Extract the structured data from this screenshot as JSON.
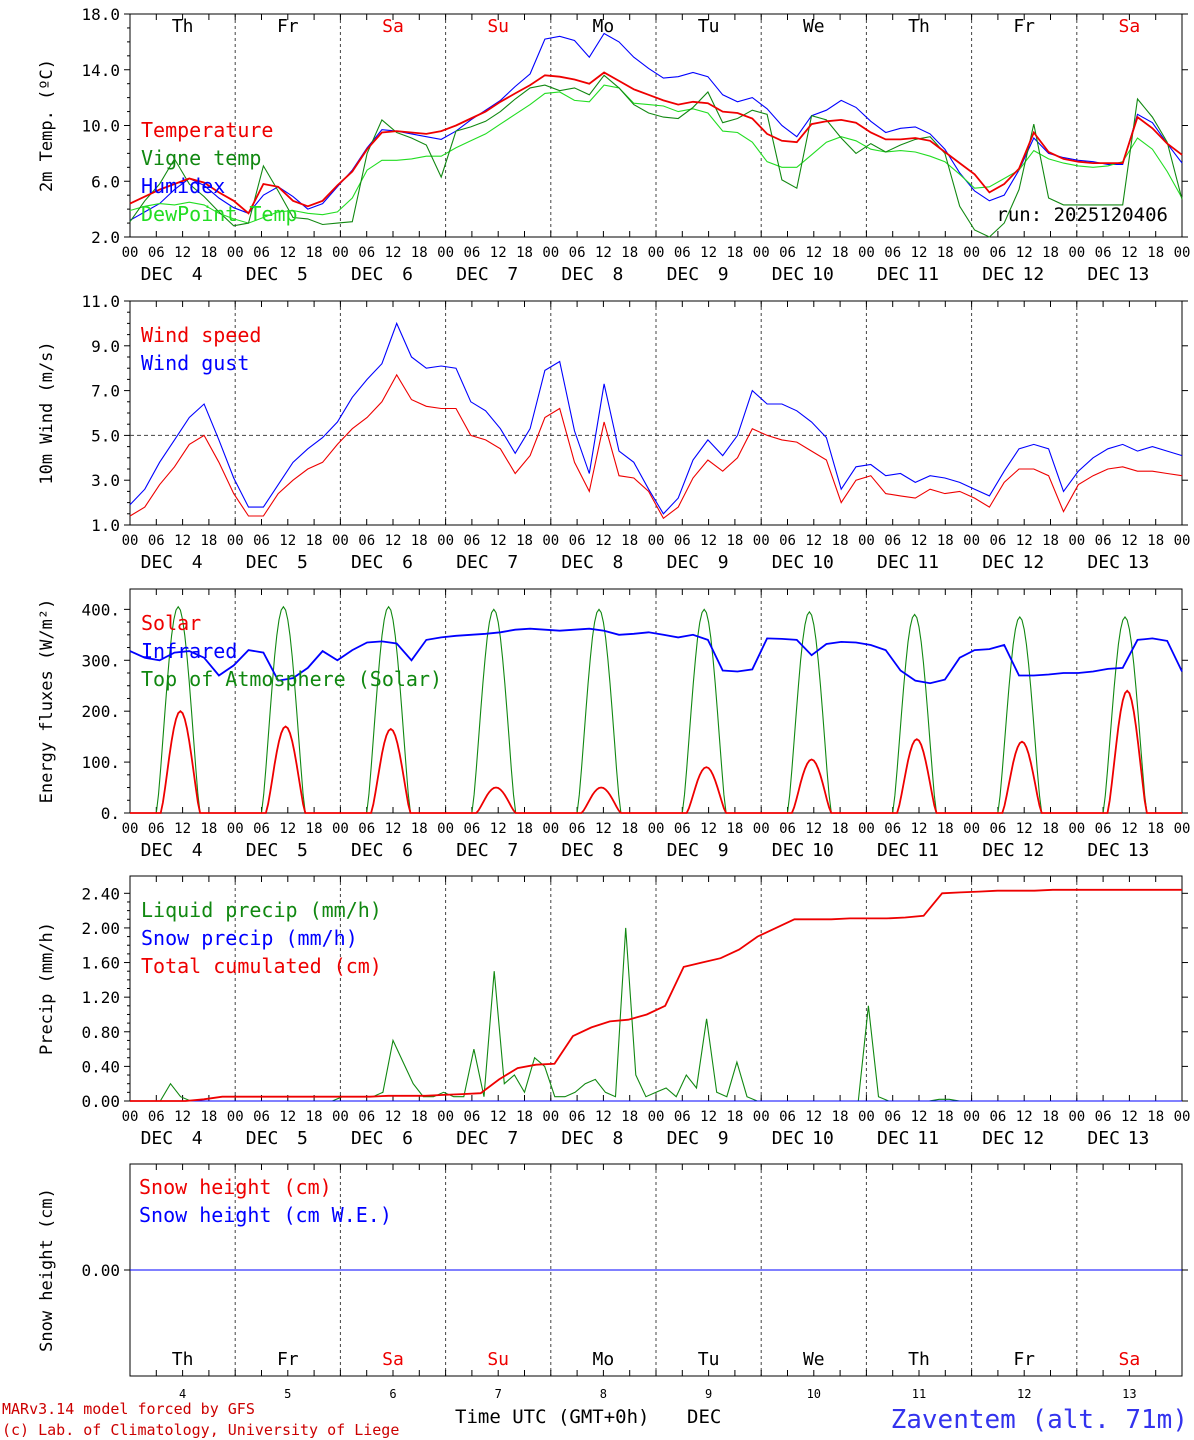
{
  "chart_data": [
    {
      "type": "line",
      "ylabel": "2m Temp. (ºC)",
      "ylim": [
        2.0,
        18.0
      ],
      "yticks": [
        2.0,
        6.0,
        10.0,
        14.0,
        18.0
      ],
      "ytick_labels": [
        "2.0",
        "6.0",
        "10.0",
        "14.0",
        "18.0"
      ],
      "legend": [
        "Temperature",
        "Vigne temp",
        "Humidex",
        "DewPoint Temp"
      ],
      "annotation": "run: 2025120406",
      "series": [
        {
          "name": "Humidex",
          "color": "#0000ff",
          "values": [
            3.2,
            3.8,
            4.4,
            5.4,
            6.2,
            5.7,
            4.8,
            4.1,
            3.7,
            5.0,
            5.6,
            4.9,
            4.0,
            4.4,
            5.6,
            6.8,
            8.4,
            9.7,
            9.6,
            9.4,
            9.2,
            9.0,
            9.6,
            10.4,
            11.1,
            11.8,
            12.8,
            13.7,
            16.2,
            16.4,
            16.1,
            14.9,
            16.6,
            16.0,
            14.9,
            14.1,
            13.4,
            13.5,
            13.8,
            13.5,
            12.2,
            11.7,
            12.0,
            11.2,
            10.0,
            9.2,
            10.7,
            11.1,
            11.8,
            11.3,
            10.3,
            9.5,
            9.8,
            9.9,
            9.4,
            8.3,
            6.6,
            5.3,
            4.6,
            5.0,
            6.8,
            9.1,
            8.0,
            7.7,
            7.5,
            7.4,
            7.2,
            7.2,
            10.8,
            10.2,
            8.7,
            7.3
          ]
        },
        {
          "name": "DewPoint Temp",
          "color": "#22dd22",
          "values": [
            3.9,
            4.2,
            4.4,
            4.3,
            4.5,
            4.3,
            3.7,
            3.3,
            3.0,
            3.4,
            3.8,
            3.9,
            3.7,
            3.6,
            3.8,
            4.8,
            6.8,
            7.5,
            7.5,
            7.6,
            7.8,
            7.8,
            8.4,
            8.9,
            9.4,
            10.1,
            10.8,
            11.5,
            12.3,
            12.4,
            11.8,
            11.7,
            12.9,
            12.7,
            11.6,
            11.5,
            11.4,
            11.0,
            11.2,
            10.9,
            9.6,
            9.5,
            8.8,
            7.4,
            7.0,
            7.0,
            7.9,
            8.8,
            9.2,
            8.9,
            8.3,
            8.1,
            8.2,
            8.1,
            7.8,
            7.4,
            6.5,
            5.5,
            5.6,
            6.2,
            6.8,
            8.2,
            7.6,
            7.3,
            7.1,
            7.0,
            7.1,
            7.4,
            9.1,
            8.3,
            6.7,
            4.8
          ]
        },
        {
          "name": "Vigne temp",
          "color": "#118811",
          "values": [
            3.1,
            4.6,
            5.8,
            7.6,
            5.8,
            4.9,
            3.8,
            2.8,
            3.0,
            7.1,
            5.3,
            3.4,
            3.3,
            2.9,
            3.0,
            3.1,
            8.0,
            10.4,
            9.5,
            9.1,
            8.6,
            6.3,
            9.6,
            9.9,
            10.3,
            11.0,
            11.9,
            12.7,
            12.9,
            12.5,
            12.7,
            12.2,
            13.6,
            12.7,
            11.5,
            10.9,
            10.6,
            10.5,
            11.3,
            12.4,
            10.2,
            10.5,
            11.1,
            10.8,
            6.1,
            5.5,
            10.7,
            10.4,
            9.1,
            8.0,
            8.7,
            8.1,
            8.6,
            9.0,
            9.2,
            8.0,
            4.2,
            2.5,
            2.0,
            3.0,
            5.4,
            10.1,
            4.8,
            4.3,
            4.3,
            4.3,
            4.3,
            4.3,
            11.9,
            10.6,
            8.8,
            4.7
          ]
        },
        {
          "name": "Temperature",
          "color": "#ee0000",
          "values": [
            4.4,
            4.9,
            5.4,
            5.8,
            6.2,
            5.9,
            5.2,
            4.6,
            3.7,
            5.8,
            5.6,
            4.6,
            4.2,
            4.6,
            5.7,
            6.7,
            8.3,
            9.5,
            9.6,
            9.5,
            9.4,
            9.6,
            10.0,
            10.5,
            11.0,
            11.7,
            12.3,
            12.9,
            13.6,
            13.5,
            13.3,
            13.0,
            13.8,
            13.2,
            12.6,
            12.2,
            11.8,
            11.5,
            11.7,
            11.6,
            11.0,
            10.9,
            10.5,
            9.4,
            8.9,
            8.8,
            10.1,
            10.3,
            10.4,
            10.2,
            9.5,
            9.0,
            9.0,
            9.1,
            8.9,
            8.1,
            7.3,
            6.5,
            5.2,
            5.8,
            6.9,
            9.5,
            8.1,
            7.6,
            7.4,
            7.3,
            7.3,
            7.3,
            10.6,
            9.8,
            8.7,
            7.9
          ]
        }
      ]
    },
    {
      "type": "line",
      "ylabel": "10m Wind (m/s)",
      "ylim": [
        1.0,
        11.0
      ],
      "yticks": [
        1.0,
        3.0,
        5.0,
        7.0,
        9.0,
        11.0
      ],
      "ytick_labels": [
        "1.0",
        "3.0",
        "5.0",
        "7.0",
        "9.0",
        "11.0"
      ],
      "reference_line": 5.0,
      "legend": [
        "Wind speed",
        "Wind gust"
      ],
      "series": [
        {
          "name": "Wind gust",
          "color": "#0000ff",
          "values": [
            1.9,
            2.6,
            3.8,
            4.8,
            5.8,
            6.4,
            4.8,
            3.1,
            1.8,
            1.8,
            2.8,
            3.8,
            4.4,
            4.9,
            5.6,
            6.7,
            7.5,
            8.2,
            10.0,
            8.5,
            8.0,
            8.1,
            8.0,
            6.5,
            6.1,
            5.3,
            4.2,
            5.3,
            7.9,
            8.3,
            5.2,
            3.3,
            7.3,
            4.3,
            3.8,
            2.6,
            1.5,
            2.2,
            3.9,
            4.8,
            4.1,
            5.0,
            7.0,
            6.4,
            6.4,
            6.1,
            5.6,
            4.9,
            2.6,
            3.6,
            3.7,
            3.2,
            3.3,
            2.9,
            3.2,
            3.1,
            2.9,
            2.6,
            2.3,
            3.4,
            4.4,
            4.6,
            4.4,
            2.5,
            3.4,
            4.0,
            4.4,
            4.6,
            4.3,
            4.5,
            4.3,
            4.1
          ]
        },
        {
          "name": "Wind speed",
          "color": "#ee0000",
          "values": [
            1.4,
            1.8,
            2.8,
            3.6,
            4.6,
            5.0,
            3.8,
            2.4,
            1.4,
            1.4,
            2.4,
            3.0,
            3.5,
            3.8,
            4.6,
            5.3,
            5.8,
            6.5,
            7.7,
            6.6,
            6.3,
            6.2,
            6.2,
            5.0,
            4.8,
            4.4,
            3.3,
            4.1,
            5.8,
            6.2,
            3.8,
            2.5,
            5.6,
            3.2,
            3.1,
            2.5,
            1.3,
            1.8,
            3.1,
            3.9,
            3.4,
            4.0,
            5.3,
            5.0,
            4.8,
            4.7,
            4.3,
            3.9,
            2.0,
            3.0,
            3.2,
            2.4,
            2.3,
            2.2,
            2.6,
            2.4,
            2.5,
            2.2,
            1.8,
            2.9,
            3.5,
            3.5,
            3.2,
            1.6,
            2.8,
            3.2,
            3.5,
            3.6,
            3.4,
            3.4,
            3.3,
            3.2
          ]
        }
      ]
    },
    {
      "type": "line",
      "ylabel": "Energy fluxes (W/m²)",
      "ylim": [
        0,
        440
      ],
      "yticks": [
        0,
        100,
        200,
        300,
        400
      ],
      "ytick_labels": [
        "0.",
        "100.",
        "200.",
        "300.",
        "400."
      ],
      "legend": [
        "Solar",
        "Infrared",
        "Top of Atmosphere (Solar)"
      ],
      "series": [
        {
          "name": "Top of Atmosphere (Solar)",
          "color": "#118811",
          "day_peaks": [
            405,
            405,
            405,
            400,
            400,
            400,
            395,
            390,
            385,
            385
          ],
          "day_hours": [
            6,
            16
          ]
        },
        {
          "name": "Solar",
          "color": "#ee0000",
          "day_peaks": [
            200,
            170,
            165,
            50,
            50,
            90,
            105,
            145,
            140,
            240
          ],
          "day_hours": [
            7,
            16
          ]
        },
        {
          "name": "Infrared",
          "color": "#0000ff",
          "values": [
            318,
            305,
            300,
            315,
            318,
            305,
            270,
            290,
            320,
            315,
            260,
            265,
            285,
            318,
            300,
            320,
            335,
            337,
            333,
            300,
            340,
            345,
            348,
            350,
            352,
            355,
            360,
            362,
            360,
            358,
            360,
            362,
            358,
            350,
            352,
            355,
            350,
            345,
            350,
            340,
            280,
            278,
            282,
            343,
            342,
            340,
            310,
            332,
            336,
            335,
            330,
            320,
            280,
            260,
            255,
            262,
            305,
            320,
            322,
            330,
            270,
            270,
            272,
            275,
            275,
            278,
            283,
            285,
            340,
            343,
            338,
            278
          ]
        }
      ]
    },
    {
      "type": "line",
      "ylabel": "Precip (mm/h)",
      "ylim": [
        0.0,
        2.6
      ],
      "yticks": [
        0.0,
        0.4,
        0.8,
        1.2,
        1.6,
        2.0,
        2.4
      ],
      "ytick_labels": [
        "0.00",
        "0.40",
        "0.80",
        "1.20",
        "1.60",
        "2.00",
        "2.40"
      ],
      "legend": [
        "Liquid precip (mm/h)",
        "Snow precip (mm/h)",
        "Total cumulated (cm)"
      ],
      "series": [
        {
          "name": "Liquid precip (mm/h)",
          "color": "#118811",
          "values": [
            0,
            0,
            0,
            0,
            0.2,
            0.05,
            0,
            0,
            0,
            0,
            0,
            0,
            0,
            0,
            0,
            0,
            0,
            0,
            0,
            0,
            0,
            0.05,
            0.05,
            0.05,
            0.05,
            0.1,
            0.7,
            0.45,
            0.2,
            0.05,
            0.05,
            0.1,
            0.05,
            0.05,
            0.6,
            0.05,
            1.5,
            0.2,
            0.3,
            0.1,
            0.5,
            0.4,
            0.05,
            0.05,
            0.1,
            0.2,
            0.25,
            0.1,
            0.05,
            2.0,
            0.3,
            0.05,
            0.1,
            0.15,
            0.05,
            0.3,
            0.15,
            0.95,
            0.1,
            0.05,
            0.45,
            0.05,
            0,
            0,
            0,
            0,
            0,
            0,
            0,
            0,
            0,
            0,
            0,
            1.1,
            0.05,
            0,
            0,
            0,
            0,
            0,
            0.02,
            0.02,
            0,
            0,
            0,
            0,
            0,
            0,
            0,
            0,
            0,
            0,
            0,
            0,
            0,
            0,
            0,
            0,
            0,
            0,
            0,
            0,
            0,
            0,
            0
          ]
        },
        {
          "name": "Snow precip (mm/h)",
          "color": "#0000ff",
          "values": [
            0,
            0
          ]
        },
        {
          "name": "Total cumulated (cm)",
          "color": "#ee0000",
          "values": [
            0.0,
            0.0,
            0.0,
            0.0,
            0.02,
            0.05,
            0.05,
            0.05,
            0.05,
            0.05,
            0.05,
            0.05,
            0.05,
            0.05,
            0.06,
            0.06,
            0.06,
            0.07,
            0.08,
            0.09,
            0.25,
            0.38,
            0.42,
            0.43,
            0.75,
            0.85,
            0.92,
            0.94,
            1.0,
            1.1,
            1.55,
            1.6,
            1.65,
            1.75,
            1.9,
            2.0,
            2.1,
            2.1,
            2.1,
            2.11,
            2.11,
            2.11,
            2.12,
            2.14,
            2.4,
            2.41,
            2.42,
            2.43,
            2.43,
            2.43,
            2.44,
            2.44,
            2.44,
            2.44,
            2.44,
            2.44,
            2.44,
            2.44
          ]
        }
      ]
    },
    {
      "type": "line",
      "ylabel": "Snow height (cm)",
      "ylim": [
        -1,
        1
      ],
      "yticks": [
        0.0
      ],
      "ytick_labels": [
        "0.00"
      ],
      "legend": [
        "Snow height (cm)",
        "Snow height (cm W.E.)"
      ],
      "series": [
        {
          "name": "Snow height (cm)",
          "color": "#ee0000",
          "values": [
            0,
            0
          ]
        },
        {
          "name": "Snow height (cm W.E.)",
          "color": "#0000ff",
          "values": [
            0,
            0
          ]
        }
      ]
    }
  ],
  "x_axis": {
    "hour_labels": [
      "00",
      "06",
      "12",
      "18"
    ],
    "end_label": "00",
    "month": "DEC",
    "dates": [
      "4",
      "5",
      "6",
      "7",
      "8",
      "9",
      "10",
      "11",
      "12",
      "13"
    ],
    "weekdays": [
      "Th",
      "Fr",
      "Sa",
      "Su",
      "Mo",
      "Tu",
      "We",
      "Th",
      "Fr",
      "Sa"
    ],
    "weekend_flags": [
      false,
      false,
      true,
      true,
      false,
      false,
      false,
      false,
      false,
      true
    ],
    "xlabel": "Time UTC (GMT+0h)",
    "xlabel_unit": "DEC"
  },
  "colors": {
    "weekday": "#000000",
    "weekend": "#ee0000"
  },
  "footer": {
    "model": "MARv3.14 model forced by GFS",
    "credit": "(c) Lab. of Climatology, University of Liege",
    "station": "Zaventem (alt. 71m)"
  }
}
